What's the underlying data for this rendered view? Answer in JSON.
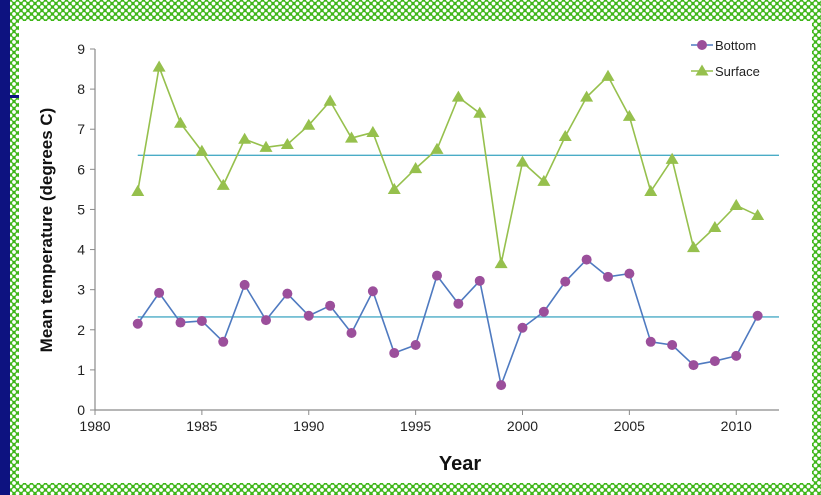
{
  "colors": {
    "frame_green": "#3fb61a",
    "slide_blue": "#0d1280",
    "bottom_line": "#4f7ac0",
    "bottom_marker": "#9b4f9b",
    "surface_line": "#96c04d",
    "mean_line": "#4aacc6"
  },
  "chart_data": {
    "type": "line",
    "title": "",
    "xlabel": "Year",
    "ylabel": "Mean temperature (degrees C)",
    "xlim": [
      1980,
      2012
    ],
    "ylim": [
      0,
      9
    ],
    "xticks": [
      1980,
      1985,
      1990,
      1995,
      2000,
      2005,
      2010
    ],
    "yticks": [
      0,
      1,
      2,
      3,
      4,
      5,
      6,
      7,
      8,
      9
    ],
    "grid": false,
    "legend_position": "top-right",
    "x": [
      1982,
      1983,
      1984,
      1985,
      1986,
      1987,
      1988,
      1989,
      1990,
      1991,
      1992,
      1993,
      1994,
      1995,
      1996,
      1997,
      1998,
      1999,
      2000,
      2001,
      2002,
      2003,
      2004,
      2005,
      2006,
      2007,
      2008,
      2009,
      2010,
      2011
    ],
    "series": [
      {
        "name": "Bottom",
        "marker": "circle",
        "values": [
          2.15,
          2.92,
          2.18,
          2.22,
          1.7,
          3.12,
          2.24,
          2.9,
          2.35,
          2.6,
          1.92,
          2.96,
          1.42,
          1.62,
          3.35,
          2.65,
          3.22,
          0.62,
          2.05,
          2.45,
          3.2,
          3.75,
          3.32,
          3.4,
          1.7,
          1.62,
          1.12,
          1.22,
          1.35,
          2.35
        ]
      },
      {
        "name": "Surface",
        "marker": "triangle",
        "values": [
          5.45,
          8.55,
          7.15,
          6.45,
          5.6,
          6.75,
          6.55,
          6.62,
          7.1,
          7.7,
          6.78,
          6.92,
          5.5,
          6.02,
          6.5,
          7.8,
          7.4,
          3.65,
          6.18,
          5.7,
          6.82,
          7.8,
          8.32,
          7.32,
          5.45,
          6.25,
          4.05,
          4.55,
          5.1,
          4.85
        ]
      }
    ],
    "reference_lines": [
      {
        "name": "Bottom mean",
        "y": 2.32,
        "x_range": [
          1982,
          2012
        ]
      },
      {
        "name": "Surface mean",
        "y": 6.35,
        "x_range": [
          1982,
          2012
        ]
      }
    ]
  }
}
